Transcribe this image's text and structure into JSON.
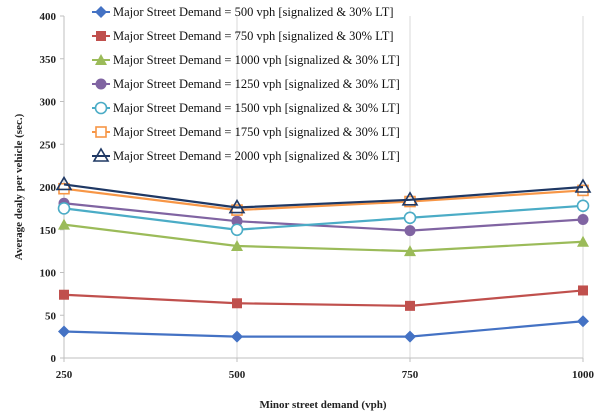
{
  "chart_data": {
    "type": "line",
    "title": "",
    "xlabel": "Minor street demand (vph)",
    "ylabel": "Average dealy per vehicle (sec.)",
    "x": [
      250,
      500,
      750,
      1000
    ],
    "x_tick_labels": [
      "250",
      "500",
      "750",
      "1000"
    ],
    "ylim": [
      0,
      400
    ],
    "y_ticks": [
      0,
      50,
      100,
      150,
      200,
      250,
      300,
      350,
      400
    ],
    "grid": "vertical",
    "legend_position": "top",
    "series": [
      {
        "name": "Major Street Demand = 500 vph [signalized & 30% LT]",
        "values": [
          31,
          25,
          25,
          43
        ],
        "color": "#4472C4",
        "marker": "diamond"
      },
      {
        "name": "Major Street Demand = 750 vph [signalized & 30% LT]",
        "values": [
          74,
          64,
          61,
          79
        ],
        "color": "#C0504D",
        "marker": "square"
      },
      {
        "name": "Major Street Demand = 1000 vph [signalized & 30% LT]",
        "values": [
          156,
          131,
          125,
          136
        ],
        "color": "#9BBB59",
        "marker": "triangle"
      },
      {
        "name": "Major Street Demand = 1250 vph [signalized & 30% LT]",
        "values": [
          181,
          160,
          149,
          162
        ],
        "color": "#8064A2",
        "marker": "circle"
      },
      {
        "name": "Major Street Demand = 1500 vph [signalized & 30% LT]",
        "values": [
          175,
          150,
          164,
          178
        ],
        "color": "#4BACC6",
        "marker": "open-circle"
      },
      {
        "name": "Major Street Demand = 1750 vph [signalized & 30% LT]",
        "values": [
          198,
          173,
          183,
          196
        ],
        "color": "#F79646",
        "marker": "open-square"
      },
      {
        "name": "Major Street Demand = 2000 vph [signalized & 30% LT]",
        "values": [
          203,
          176,
          185,
          200
        ],
        "color": "#1F3864",
        "marker": "open-triangle"
      }
    ]
  }
}
